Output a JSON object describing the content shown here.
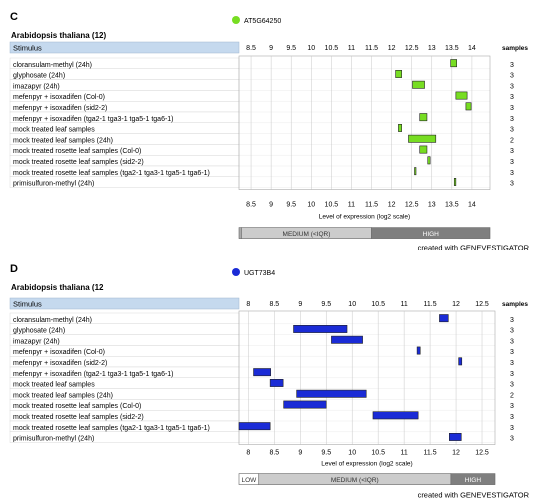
{
  "chart_data": [
    {
      "type": "bar",
      "panel_label": "C",
      "gene": "AT5G64250",
      "organism": "Arabidopsis thaliana (12)",
      "column_header": "Stimulus",
      "samples_header": "samples",
      "xlabel": "Level of expression (log2 scale)",
      "xlim": [
        8.2,
        14.45
      ],
      "ticks": [
        "8.5",
        "9",
        "9.5",
        "10",
        "10.5",
        "11",
        "11.5",
        "12",
        "12.5",
        "13",
        "13.5",
        "14"
      ],
      "grid": true,
      "series_color": "#77dd22",
      "legend_color": "#77dd22",
      "categories": [
        "cloransulam-methyl (24h)",
        "glyphosate (24h)",
        "imazapyr (24h)",
        "mefenpyr + isoxadifen (Col-0)",
        "mefenpyr + isoxadifen (sid2-2)",
        "mefenpyr + isoxadifen (tga2-1 tga3-1 tga5-1 tga6-1)",
        "mock treated leaf samples",
        "mock treated leaf samples (24h)",
        "mock treated rosette leaf samples (Col-0)",
        "mock treated rosette leaf samples (sid2-2)",
        "mock treated rosette leaf samples (tga2-1 tga3-1 tga5-1 tga6-1)",
        "primisulfuron-methyl (24h)"
      ],
      "ranges": [
        [
          13.47,
          13.62
        ],
        [
          12.1,
          12.25
        ],
        [
          12.52,
          12.82
        ],
        [
          13.6,
          13.88
        ],
        [
          13.85,
          13.98
        ],
        [
          12.7,
          12.88
        ],
        [
          12.17,
          12.25
        ],
        [
          12.42,
          13.1
        ],
        [
          12.7,
          12.88
        ],
        [
          12.9,
          12.96
        ],
        [
          12.57,
          12.6
        ],
        [
          13.56,
          13.6
        ]
      ],
      "samples": [
        "3",
        "3",
        "3",
        "3",
        "3",
        "3",
        "3",
        "2",
        "3",
        "3",
        "3",
        "3"
      ],
      "bands": [
        {
          "label": "",
          "range": [
            8.2,
            8.26
          ],
          "color": "#aaaaaa"
        },
        {
          "label": "MEDIUM (<IQR)",
          "range": [
            8.26,
            11.5
          ],
          "color": "#cccccc"
        },
        {
          "label": "HIGH",
          "range": [
            11.5,
            14.45
          ],
          "color": "#7f7f7f"
        }
      ],
      "footer": "created with GENEVESTIGATOR"
    },
    {
      "type": "bar",
      "panel_label": "D",
      "gene": "UGT73B4",
      "organism": "Arabidopsis thaliana (12",
      "column_header": "Stimulus",
      "samples_header": "samples",
      "xlabel": "Level of expression (log2 scale)",
      "xlim": [
        7.82,
        12.75
      ],
      "ticks": [
        "8",
        "8.5",
        "9",
        "9.5",
        "10",
        "10.5",
        "11",
        "11.5",
        "12",
        "12.5"
      ],
      "grid": true,
      "series_color": "#1a2bd6",
      "legend_color": "#1a2bd6",
      "categories": [
        "cloransulam-methyl (24h)",
        "glyphosate (24h)",
        "imazapyr (24h)",
        "mefenpyr + isoxadifen (Col-0)",
        "mefenpyr + isoxadifen (sid2-2)",
        "mefenpyr + isoxadifen (tga2-1 tga3-1 tga5-1 tga6-1)",
        "mock treated leaf samples",
        "mock treated leaf samples (24h)",
        "mock treated rosette leaf samples (Col-0)",
        "mock treated rosette leaf samples (sid2-2)",
        "mock treated rosette leaf samples (tga2-1 tga3-1 tga5-1 tga6-1)",
        "primisulfuron-methyl (24h)"
      ],
      "ranges": [
        [
          11.68,
          11.85
        ],
        [
          8.87,
          9.9
        ],
        [
          9.6,
          10.2
        ],
        [
          11.25,
          11.31
        ],
        [
          12.05,
          12.11
        ],
        [
          8.1,
          8.43
        ],
        [
          8.42,
          8.67
        ],
        [
          8.93,
          10.27
        ],
        [
          8.68,
          9.5
        ],
        [
          10.4,
          11.27
        ],
        [
          7.82,
          8.42
        ],
        [
          11.87,
          12.1
        ]
      ],
      "samples": [
        "3",
        "3",
        "3",
        "3",
        "3",
        "3",
        "3",
        "2",
        "3",
        "3",
        "3",
        "3"
      ],
      "bands": [
        {
          "label": "LOW",
          "range": [
            7.82,
            8.2
          ],
          "color": "#ffffff"
        },
        {
          "label": "MEDIUM (<IQR)",
          "range": [
            8.2,
            11.9
          ],
          "color": "#cccccc"
        },
        {
          "label": "HIGH",
          "range": [
            11.9,
            12.75
          ],
          "color": "#7f7f7f"
        }
      ],
      "footer": "created with GENEVESTIGATOR"
    }
  ]
}
